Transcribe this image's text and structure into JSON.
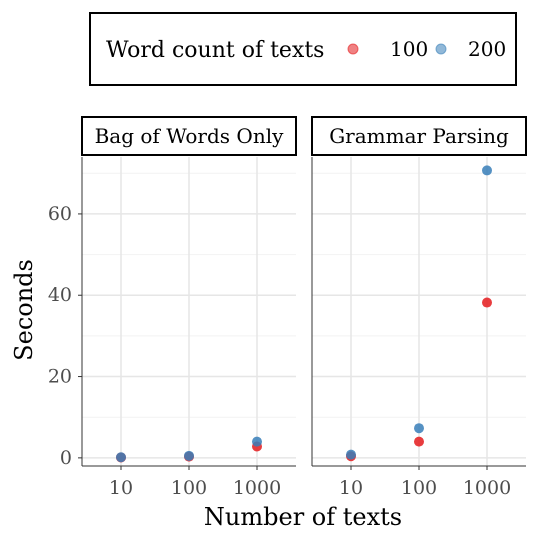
{
  "chart_data": {
    "type": "scatter",
    "xlabel": "Number of texts",
    "ylabel": "Seconds",
    "x_scale": "log10",
    "x_ticks": [
      "10",
      "100",
      "1000"
    ],
    "x_values": [
      10,
      100,
      1000
    ],
    "y_ticks": [
      "0",
      "20",
      "40",
      "60"
    ],
    "ylim": [
      -2,
      74
    ],
    "grid": true,
    "legend": {
      "title": "Word count of texts",
      "position": "top",
      "entries": [
        {
          "name": "100",
          "color": "#e41a1c"
        },
        {
          "name": "200",
          "color": "#377eb8"
        }
      ]
    },
    "panels": [
      {
        "title": "Bag of Words Only",
        "series": [
          {
            "name": "100",
            "points": [
              {
                "x": 10,
                "y": 0.1
              },
              {
                "x": 100,
                "y": 0.3
              },
              {
                "x": 1000,
                "y": 2.8
              }
            ]
          },
          {
            "name": "200",
            "points": [
              {
                "x": 10,
                "y": 0.15
              },
              {
                "x": 100,
                "y": 0.5
              },
              {
                "x": 1000,
                "y": 4.0
              }
            ]
          }
        ]
      },
      {
        "title": "Grammar Parsing",
        "series": [
          {
            "name": "100",
            "points": [
              {
                "x": 10,
                "y": 0.4
              },
              {
                "x": 100,
                "y": 4.0
              },
              {
                "x": 1000,
                "y": 38.2
              }
            ]
          },
          {
            "name": "200",
            "points": [
              {
                "x": 10,
                "y": 0.8
              },
              {
                "x": 100,
                "y": 7.3
              },
              {
                "x": 1000,
                "y": 70.7
              }
            ]
          }
        ]
      }
    ]
  }
}
